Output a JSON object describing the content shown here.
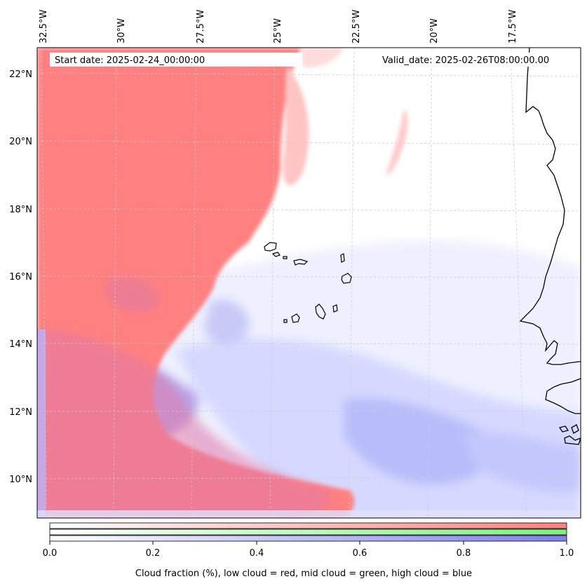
{
  "map": {
    "start_date": "Start date: 2025-02-24_00:00:00",
    "valid_date": "Valid_date: 2025-02-26T08:00:00.00",
    "lon_labels": [
      "32.5°W",
      "30°W",
      "27.5°W",
      "25°W",
      "22.5°W",
      "20°W",
      "17.5°W"
    ],
    "lat_labels": [
      "22°N",
      "20°N",
      "18°N",
      "16°N",
      "14°N",
      "12°N",
      "10°N"
    ],
    "colors": {
      "low_cloud": "#ff7f7f",
      "mid_cloud": "#7fef7f",
      "high_cloud": "#8080f0",
      "coastline": "#000000",
      "grid": "#cccccc"
    }
  },
  "colorbar": {
    "ticks": [
      "0.0",
      "0.2",
      "0.4",
      "0.6",
      "0.8",
      "1.0"
    ],
    "label": "Cloud fraction (%), low cloud = red, mid cloud = green, high cloud = blue"
  }
}
